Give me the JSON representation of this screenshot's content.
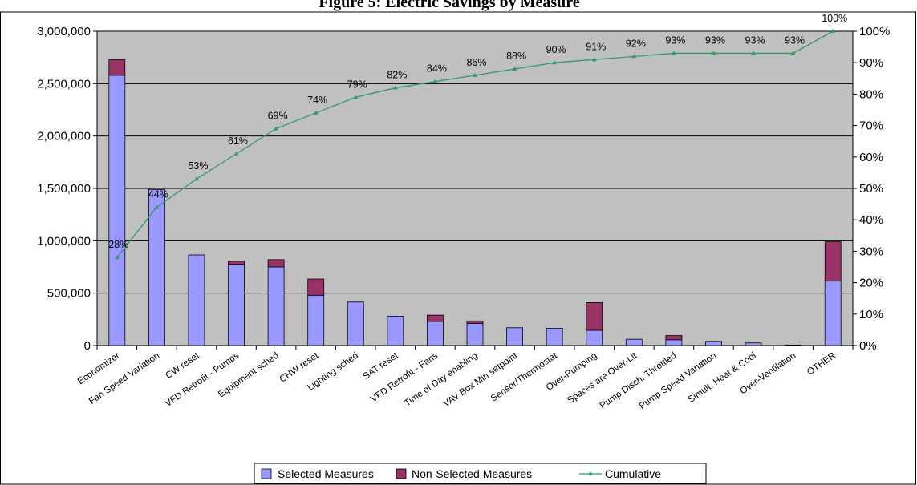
{
  "chart_data": {
    "type": "bar",
    "stacked": true,
    "title": "Figure 5: Electric Savings by Measure",
    "categories": [
      "Economizer",
      "Fan Speed Variation",
      "CW reset",
      "VFD Retrofit - Pumps",
      "Equipment sched",
      "CHW reset",
      "Lighting sched",
      "SAT reset",
      "VFD Retrofit - Fans",
      "Time of Day enabling",
      "VAV Box Min setpoint",
      "Sensor/Thermostat",
      "Over-Pumping",
      "Spaces are Over-Lit",
      "Pump Disch. Throttled",
      "Pump Speed Variation",
      "Simult. Heat & Cool",
      "Over-Ventilation",
      "OTHER"
    ],
    "series": [
      {
        "name": "Selected Measures",
        "color": "#9999ff",
        "values": [
          2580000,
          1490000,
          865000,
          775000,
          750000,
          480000,
          415000,
          280000,
          230000,
          210000,
          170000,
          165000,
          145000,
          60000,
          55000,
          40000,
          25000,
          5000,
          615000
        ]
      },
      {
        "name": "Non-Selected Measures",
        "color": "#993366",
        "values": [
          150000,
          0,
          0,
          30000,
          70000,
          155000,
          0,
          0,
          60000,
          25000,
          0,
          0,
          265000,
          0,
          40000,
          0,
          0,
          0,
          375000
        ]
      }
    ],
    "cumulative": {
      "name": "Cumulative",
      "color": "#339966",
      "axis": "right",
      "values": [
        28,
        44,
        53,
        61,
        69,
        74,
        79,
        82,
        84,
        86,
        88,
        90,
        91,
        92,
        93,
        93,
        93,
        93,
        100
      ],
      "labels": [
        "28%",
        "44%",
        "53%",
        "61%",
        "69%",
        "74%",
        "79%",
        "82%",
        "84%",
        "86%",
        "88%",
        "90%",
        "91%",
        "92%",
        "93%",
        "93%",
        "93%",
        "93%",
        "100%"
      ]
    },
    "ylim": [
      0,
      3000000
    ],
    "yticks": [
      "0",
      "500,000",
      "1,000,000",
      "1,500,000",
      "2,000,000",
      "2,500,000",
      "3,000,000"
    ],
    "y2lim": [
      0,
      100
    ],
    "y2ticks": [
      "0%",
      "10%",
      "20%",
      "30%",
      "40%",
      "50%",
      "60%",
      "70%",
      "80%",
      "90%",
      "100%"
    ],
    "grid": true,
    "plot_background": "#c0c0c0",
    "legend_position": "bottom"
  }
}
